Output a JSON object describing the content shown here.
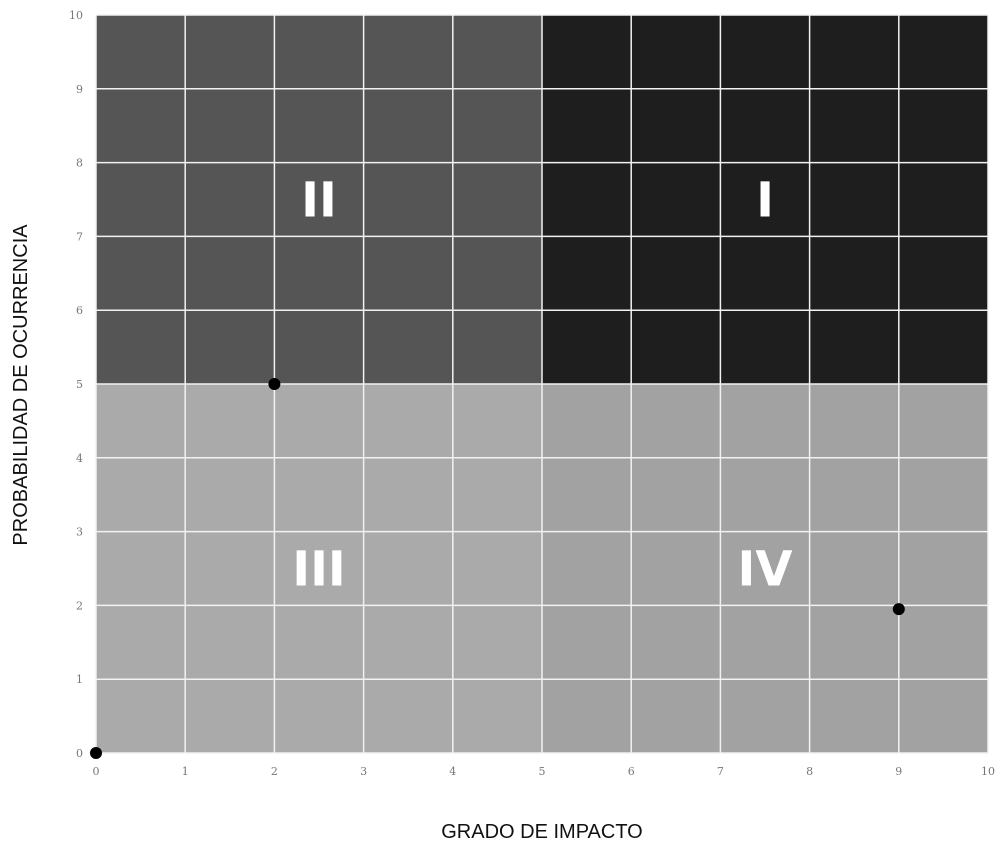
{
  "chart_data": {
    "type": "scatter",
    "title": "",
    "xlabel": "GRADO DE IMPACTO",
    "ylabel": "PROBABILIDAD DE OCURRENCIA",
    "xlim": [
      0,
      10
    ],
    "ylim": [
      0,
      10
    ],
    "x_ticks": [
      "0",
      "1",
      "2",
      "3",
      "4",
      "5",
      "6",
      "7",
      "8",
      "9",
      "10"
    ],
    "y_ticks": [
      "0",
      "1",
      "2",
      "3",
      "4",
      "5",
      "6",
      "7",
      "8",
      "9",
      "10"
    ],
    "grid": true,
    "quadrants": [
      {
        "label": "II",
        "x_range": [
          0,
          5
        ],
        "y_range": [
          5,
          10
        ],
        "color": "#555555"
      },
      {
        "label": "I",
        "x_range": [
          5,
          10
        ],
        "y_range": [
          5,
          10
        ],
        "color": "#1e1e1e"
      },
      {
        "label": "III",
        "x_range": [
          0,
          5
        ],
        "y_range": [
          0,
          5
        ],
        "color": "#aaaaaa"
      },
      {
        "label": "IV",
        "x_range": [
          5,
          10
        ],
        "y_range": [
          0,
          5
        ],
        "color": "#a2a2a2"
      }
    ],
    "points": [
      {
        "x": 0,
        "y": 0
      },
      {
        "x": 2,
        "y": 5
      },
      {
        "x": 9,
        "y": 1.95
      }
    ],
    "point_color": "#000000",
    "grid_color": "#f2f2f2"
  }
}
